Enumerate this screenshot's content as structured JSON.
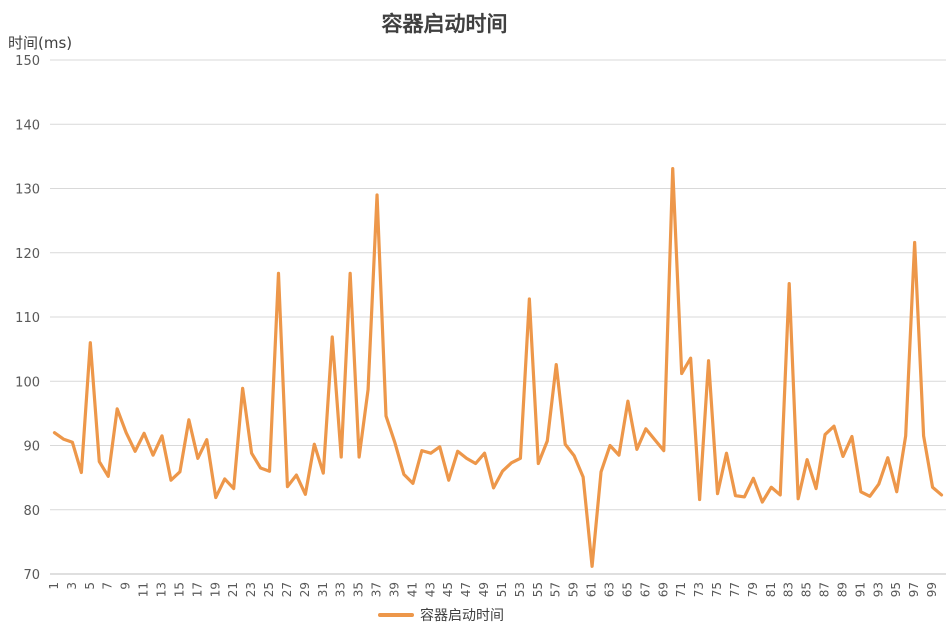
{
  "chart_data": {
    "type": "line",
    "title": "容器启动时间",
    "xlabel": "",
    "ylabel": "时间(ms)",
    "ylim": [
      70,
      150
    ],
    "yticks": [
      70,
      80,
      90,
      100,
      110,
      120,
      130,
      140,
      150
    ],
    "x": [
      1,
      2,
      3,
      4,
      5,
      6,
      7,
      8,
      9,
      10,
      11,
      12,
      13,
      14,
      15,
      16,
      17,
      18,
      19,
      20,
      21,
      22,
      23,
      24,
      25,
      26,
      27,
      28,
      29,
      30,
      31,
      32,
      33,
      34,
      35,
      36,
      37,
      38,
      39,
      40,
      41,
      42,
      43,
      44,
      45,
      46,
      47,
      48,
      49,
      50,
      51,
      52,
      53,
      54,
      55,
      56,
      57,
      58,
      59,
      60,
      61,
      62,
      63,
      64,
      65,
      66,
      67,
      68,
      69,
      70,
      71,
      72,
      73,
      74,
      75,
      76,
      77,
      78,
      79,
      80,
      81,
      82,
      83,
      84,
      85,
      86,
      87,
      88,
      89,
      90,
      91,
      92,
      93,
      94,
      95,
      96,
      97,
      98,
      99,
      100
    ],
    "xtick_labels": [
      "1",
      "3",
      "5",
      "7",
      "9",
      "11",
      "13",
      "15",
      "17",
      "19",
      "21",
      "23",
      "25",
      "27",
      "29",
      "31",
      "33",
      "35",
      "37",
      "39",
      "41",
      "43",
      "45",
      "47",
      "49",
      "51",
      "53",
      "55",
      "57",
      "59",
      "61",
      "63",
      "65",
      "67",
      "69",
      "71",
      "73",
      "75",
      "77",
      "79",
      "81",
      "83",
      "85",
      "87",
      "89",
      "91",
      "93",
      "95",
      "97",
      "99"
    ],
    "grid": true,
    "legend_position": "bottom",
    "series": [
      {
        "name": "容器启动时间",
        "color": "#ED974A",
        "values": [
          92,
          91,
          90.5,
          85.8,
          106,
          87.5,
          85.2,
          95.7,
          92,
          89.1,
          91.9,
          88.5,
          91.5,
          84.6,
          85.9,
          94,
          88,
          90.9,
          81.9,
          84.8,
          83.3,
          98.9,
          88.8,
          86.5,
          86,
          116.8,
          83.6,
          85.4,
          82.4,
          90.2,
          85.7,
          106.9,
          88.2,
          116.8,
          88.2,
          98.7,
          129,
          94.6,
          90.4,
          85.5,
          84.1,
          89.2,
          88.8,
          89.8,
          84.6,
          89.1,
          88,
          87.2,
          88.8,
          83.4,
          86,
          87.3,
          88,
          112.8,
          87.2,
          90.7,
          102.6,
          90.2,
          88.4,
          85.1,
          71.2,
          85.9,
          90,
          88.5,
          96.9,
          89.4,
          92.6,
          90.9,
          89.2,
          133.1,
          101.2,
          103.6,
          81.6,
          103.2,
          82.5,
          88.8,
          82.2,
          82,
          84.9,
          81.2,
          83.5,
          82.3,
          115.2,
          81.7,
          87.8,
          83.3,
          91.7,
          93,
          88.3,
          91.4,
          82.8,
          82.1,
          84,
          88.1,
          82.8,
          91.5,
          121.6,
          91.5,
          83.5,
          82.3
        ]
      }
    ]
  }
}
